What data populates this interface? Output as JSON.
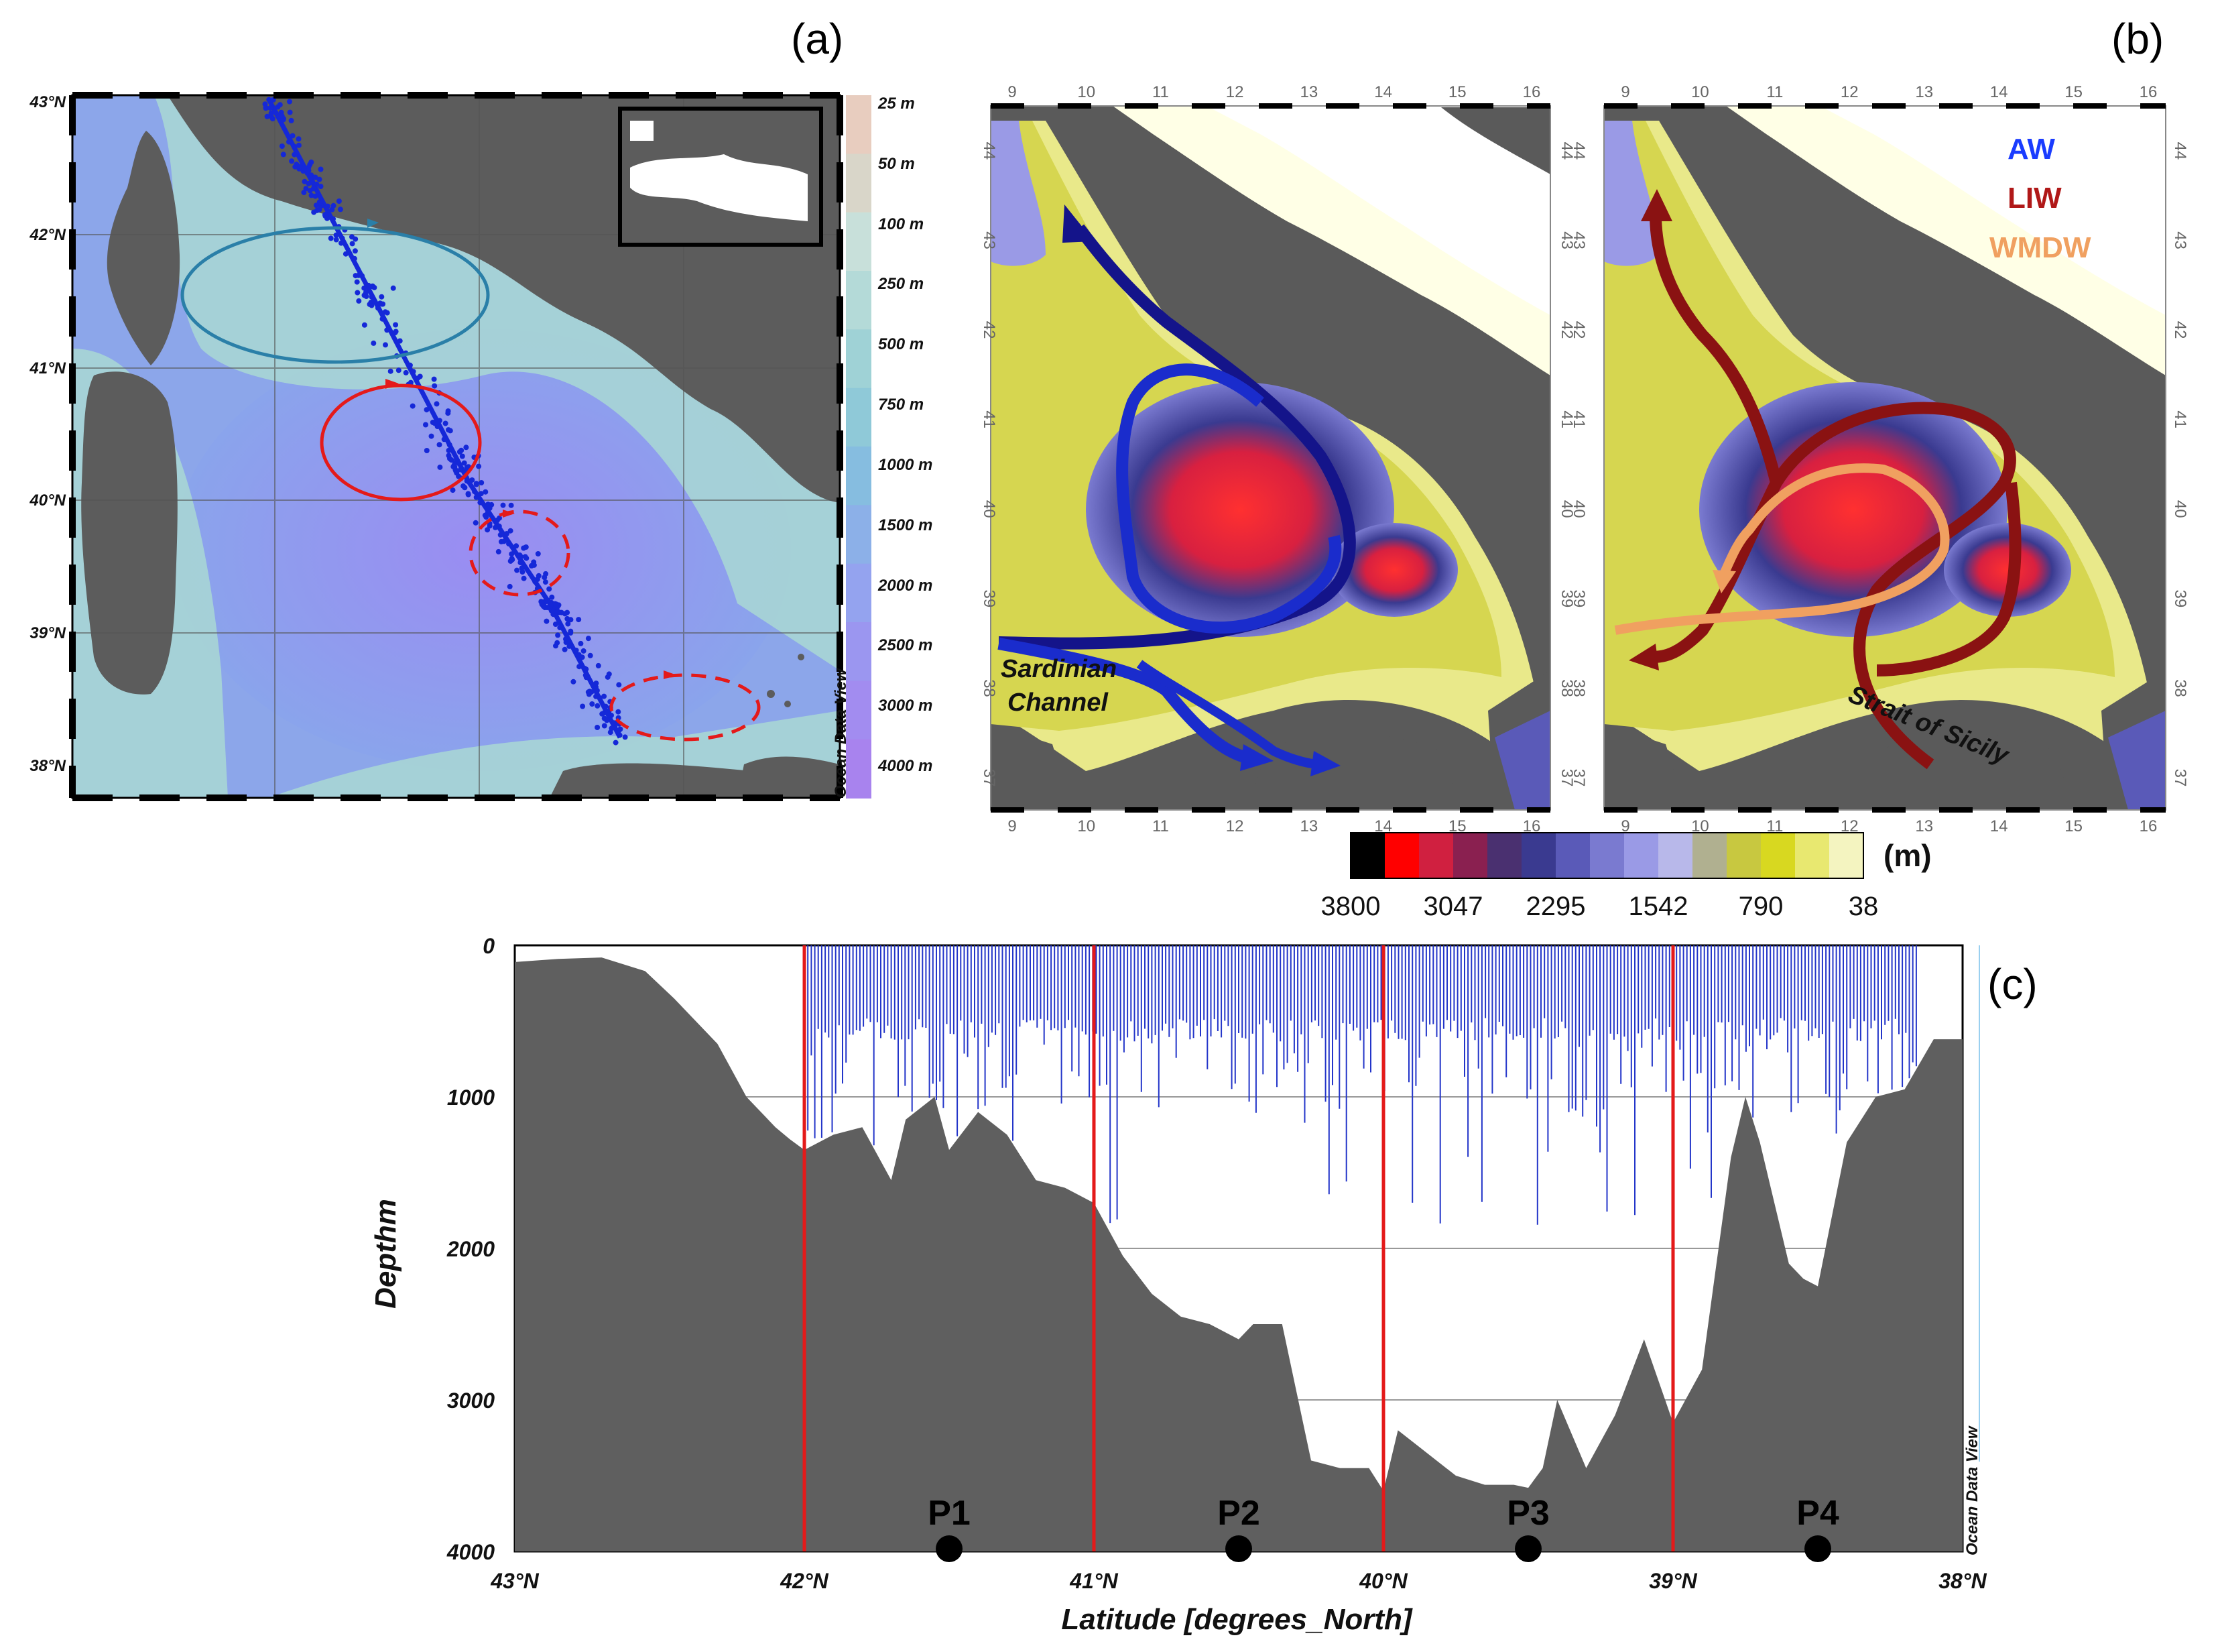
{
  "panel_labels": {
    "a": "(a)",
    "b": "(b)",
    "c": "(c)"
  },
  "panel_a": {
    "lat_ticks": [
      "43°N",
      "42°N",
      "41°N",
      "40°N",
      "39°N",
      "38°N"
    ],
    "depth_legend": [
      "25 m",
      "50 m",
      "100 m",
      "250 m",
      "500 m",
      "750 m",
      "1000 m",
      "1500 m",
      "2000 m",
      "2500 m",
      "3000 m",
      "4000 m"
    ],
    "legend_colors": [
      "#e8cdbf",
      "#d9d6c9",
      "#c8e0da",
      "#b4dad8",
      "#9fd2d6",
      "#8fc9d8",
      "#86bde0",
      "#8cb0e8",
      "#94a3ef",
      "#9b96f0",
      "#a28cf0",
      "#a883ee"
    ],
    "watermark": "Ocean Data View"
  },
  "panel_b": {
    "top_lon_ticks": [
      "9",
      "10",
      "11",
      "12",
      "13",
      "14",
      "15",
      "16"
    ],
    "bottom_lon_ticks": [
      "9",
      "10",
      "11",
      "12",
      "13",
      "14",
      "15",
      "16"
    ],
    "lat_ticks": [
      "44",
      "43",
      "42",
      "41",
      "40",
      "39",
      "38",
      "37"
    ],
    "left_map_labels": [
      "Sardinian",
      "Channel"
    ],
    "right_map_label": "Strait of Sicily",
    "water_masses": [
      {
        "name": "AW",
        "color": "#1a3cff"
      },
      {
        "name": "LIW",
        "color": "#b01818"
      },
      {
        "name": "WMDW",
        "color": "#f0a060"
      }
    ],
    "colorbar": {
      "unit": "(m)",
      "ticks": [
        "3800",
        "3047",
        "2295",
        "1542",
        "790",
        "38"
      ],
      "colors": [
        "#000000",
        "#ff0000",
        "#d02040",
        "#8a2050",
        "#4a3070",
        "#3a3a90",
        "#5a5ab8",
        "#7a7ad0",
        "#9a9ae6",
        "#b8b8ea",
        "#b0b090",
        "#c8c840",
        "#d8d820",
        "#e8e870",
        "#f4f4c0"
      ]
    }
  },
  "panel_c": {
    "y_label": "Depthm",
    "x_label": "Latitude [degrees_North]",
    "y_ticks": [
      "0",
      "1000",
      "2000",
      "3000",
      "4000"
    ],
    "x_ticks": [
      "43°N",
      "42°N",
      "41°N",
      "40°N",
      "39°N",
      "38°N"
    ],
    "points": [
      {
        "label": "P1",
        "lat": 41.5
      },
      {
        "label": "P2",
        "lat": 40.5
      },
      {
        "label": "P3",
        "lat": 39.5
      },
      {
        "label": "P4",
        "lat": 38.5
      }
    ],
    "boundaries_lat": [
      42,
      41,
      40,
      39
    ],
    "watermark": "Ocean Data View"
  },
  "chart_data": {
    "type": "area",
    "title": "",
    "xlabel": "Latitude [degrees_North]",
    "ylabel": "Depthm",
    "xlim": [
      43,
      38
    ],
    "ylim": [
      0,
      4000
    ],
    "grid": true,
    "series": [
      {
        "name": "bathymetry",
        "x": [
          43.0,
          42.85,
          42.7,
          42.55,
          42.45,
          42.3,
          42.2,
          42.1,
          42.05,
          42.0,
          41.9,
          41.8,
          41.7,
          41.65,
          41.55,
          41.5,
          41.4,
          41.3,
          41.2,
          41.1,
          41.0,
          40.9,
          40.8,
          40.7,
          40.6,
          40.5,
          40.45,
          40.35,
          40.3,
          40.25,
          40.15,
          40.05,
          40.0,
          39.95,
          39.85,
          39.75,
          39.65,
          39.55,
          39.5,
          39.45,
          39.4,
          39.3,
          39.2,
          39.1,
          39.0,
          38.9,
          38.8,
          38.75,
          38.7,
          38.6,
          38.55,
          38.5,
          38.4,
          38.3,
          38.2,
          38.1,
          38.0
        ],
        "values": [
          110,
          90,
          80,
          170,
          350,
          650,
          1000,
          1200,
          1280,
          1350,
          1250,
          1200,
          1550,
          1150,
          1000,
          1350,
          1100,
          1250,
          1550,
          1600,
          1700,
          2050,
          2300,
          2450,
          2500,
          2600,
          2500,
          2500,
          2950,
          3400,
          3450,
          3450,
          3600,
          3200,
          3350,
          3500,
          3560,
          3560,
          3580,
          3450,
          3000,
          3450,
          3100,
          2600,
          3150,
          2800,
          1400,
          1000,
          1300,
          2100,
          2200,
          2250,
          1300,
          1000,
          950,
          620,
          620
        ]
      }
    ],
    "profile_max_depth_m": 1900
  }
}
